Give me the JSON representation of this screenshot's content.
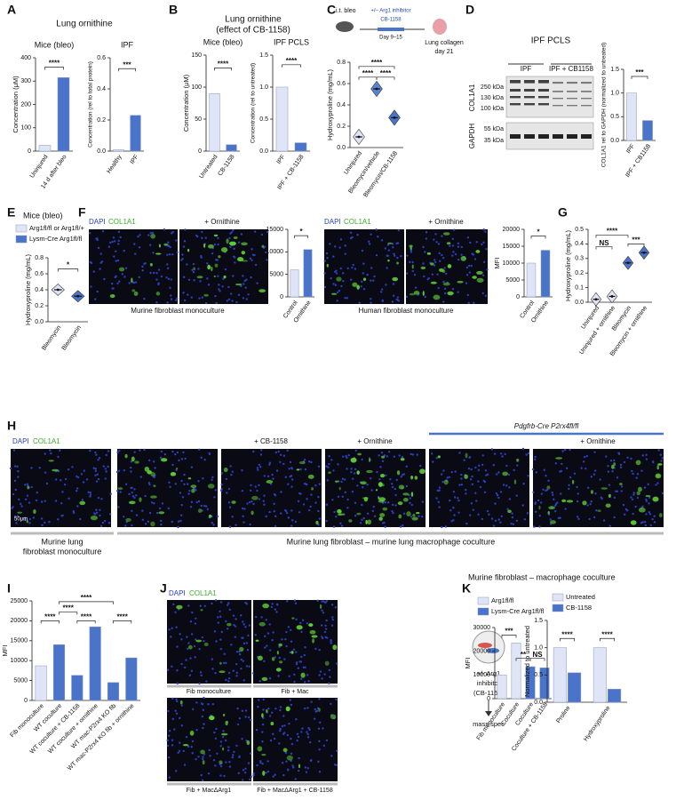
{
  "chart_data": [
    {
      "type": "bar",
      "title": "Mice (bleo)",
      "ylabel": "Concentration (μM)",
      "categories": [
        "Uninjured",
        "14 d after bleo"
      ],
      "values": [
        25,
        315
      ],
      "colors": [
        "#dfe5f7",
        "#4a74c9"
      ],
      "ylim": [
        0,
        400
      ],
      "yticks": [
        0,
        100,
        200,
        300,
        400
      ],
      "annotations": [
        "****"
      ]
    },
    {
      "type": "bar",
      "title": "IPF",
      "ylabel": "Concentration (rel to total protein)",
      "categories": [
        "Healthy",
        "IPF"
      ],
      "values": [
        0.01,
        0.23
      ],
      "colors": [
        "#dfe5f7",
        "#4a74c9"
      ],
      "ylim": [
        0,
        0.6
      ],
      "yticks": [
        {
          "value": 0,
          "label": "0.0"
        },
        0.2,
        0.4,
        0.6
      ],
      "annotations": [
        "***"
      ]
    },
    {
      "type": "bar",
      "title": "Mice (bleo)",
      "ylabel": "Concentration (μM)",
      "categories": [
        "Untreated",
        "CB-1158"
      ],
      "values": [
        90,
        10
      ],
      "colors": [
        "#dfe5f7",
        "#4a74c9"
      ],
      "ylim": [
        0,
        150
      ],
      "yticks": [
        0,
        50,
        100,
        150
      ],
      "annotations": [
        "****"
      ]
    },
    {
      "type": "bar",
      "title": "IPF PCLS",
      "ylabel": "Concentration (rel to untreated)",
      "categories": [
        "IPF",
        "IPF + CB-1158"
      ],
      "values": [
        1.0,
        0.13
      ],
      "colors": [
        "#dfe5f7",
        "#4a74c9"
      ],
      "ylim": [
        0,
        1.5
      ],
      "yticks": [
        {
          "value": 0,
          "label": "0.0"
        },
        0.5,
        {
          "value": 1,
          "label": "1.0"
        },
        1.5
      ],
      "annotations": [
        "****"
      ]
    },
    {
      "type": "violin",
      "ylabel": "Hydroxyproline (mg/mL)",
      "categories": [
        "Uninjured",
        "Bleomycin/vehicle",
        "Bleomycin/CB-1158"
      ],
      "values": [
        0.1,
        0.55,
        0.28
      ],
      "colors": [
        "#dfe5f7",
        "#5b82d2",
        "#4a74c9"
      ],
      "ylim": [
        0,
        0.8
      ],
      "yticks": [
        {
          "value": 0,
          "label": "0.0"
        },
        0.2,
        0.4,
        0.6,
        0.8
      ],
      "annotations": [
        "****",
        "****",
        "****"
      ]
    },
    {
      "type": "bar",
      "title": "IPF PCLS",
      "ylabel": "COL1A1 rel to GAPDH (normalized to untreated)",
      "categories": [
        "IPF",
        "IPF + CB1158"
      ],
      "values": [
        1.0,
        0.42
      ],
      "colors": [
        "#dfe5f7",
        "#4a74c9"
      ],
      "ylim": [
        0,
        1.5
      ],
      "yticks": [
        {
          "value": 0,
          "label": "0.0"
        },
        0.5,
        {
          "value": 1,
          "label": "1.0"
        },
        1.5
      ],
      "annotations": [
        "***"
      ]
    },
    {
      "type": "violin",
      "title": "Mice (bleo)",
      "ylabel": "Hydroxyproline (mg/mL)",
      "categories": [
        "Bleomycin",
        "Bleomycin"
      ],
      "series": [
        {
          "name": "Arg1fl/fl or Arg1fl/+",
          "color": "#dfe5f7",
          "values": [
            0.4,
            null
          ]
        },
        {
          "name": "Lysm-Cre Arg1fl/fl",
          "color": "#4a74c9",
          "values": [
            null,
            0.32
          ]
        }
      ],
      "ylim": [
        0,
        0.8
      ],
      "yticks": [
        {
          "value": 0,
          "label": "0.0"
        },
        0.2,
        0.4,
        0.6,
        0.8
      ],
      "annotations": [
        "*"
      ]
    },
    {
      "type": "bar",
      "ylabel": "MFI",
      "categories": [
        "Control",
        "Ornithine"
      ],
      "values": [
        6000,
        10500
      ],
      "colors": [
        "#dfe5f7",
        "#4a74c9"
      ],
      "ylim": [
        0,
        15000
      ],
      "yticks": [
        0,
        5000,
        10000,
        15000
      ],
      "annotations": [
        "*"
      ]
    },
    {
      "type": "bar",
      "ylabel": "MFI",
      "categories": [
        "Control",
        "Ornithine"
      ],
      "values": [
        10000,
        13800
      ],
      "colors": [
        "#dfe5f7",
        "#4a74c9"
      ],
      "ylim": [
        0,
        20000
      ],
      "yticks": [
        0,
        5000,
        10000,
        15000,
        20000
      ],
      "annotations": [
        "*"
      ]
    },
    {
      "type": "violin",
      "ylabel": "Hydroxyproline (mg/mL)",
      "categories": [
        "Uninjured",
        "Uninjured + ornithine",
        "Bleomycin",
        "Bleomycin + ornithine"
      ],
      "values": [
        0.02,
        0.04,
        0.27,
        0.34
      ],
      "colors": [
        "#dfe5f7",
        "#dfe5f7",
        "#4a74c9",
        "#4a74c9"
      ],
      "ylim": [
        0,
        0.5
      ],
      "yticks": [
        {
          "value": 0,
          "label": "0.0"
        },
        0.1,
        0.2,
        0.3,
        0.4,
        0.5
      ],
      "annotations": [
        "NS",
        "****",
        "***"
      ]
    },
    {
      "type": "bar",
      "ylabel": "MFI",
      "categories": [
        "Fib monoculture",
        "WT coculture",
        "WT coculture + CB-1158",
        "WT coculture + ornithine",
        "WT mac-P2rx4 KO fib",
        "WT mac-P2rx4 KO fib + ornithine"
      ],
      "values": [
        8700,
        14000,
        6300,
        18500,
        4500,
        10700
      ],
      "colors": [
        "#dfe5f7",
        "#4a74c9",
        "#4a74c9",
        "#4a74c9",
        "#4a74c9",
        "#4a74c9"
      ],
      "ylim": [
        0,
        25000
      ],
      "yticks": [
        0,
        5000,
        10000,
        15000,
        20000,
        25000
      ],
      "annotations": [
        "****",
        "****",
        "****",
        "****",
        "****"
      ]
    },
    {
      "type": "bar",
      "ylabel": "MFI",
      "categories": [
        "Fib monoculture",
        "Coculture",
        "Coculture",
        "Coculture + CB-1158"
      ],
      "series": [
        {
          "name": "Arg1fl/fl",
          "color": "#dfe5f7",
          "values": [
            10000,
            23500,
            null,
            null
          ]
        },
        {
          "name": "Lysm-Cre Arg1fl/fl",
          "color": "#4a74c9",
          "values": [
            null,
            null,
            13500,
            13000
          ]
        }
      ],
      "ylim": [
        0,
        30000
      ],
      "yticks": [
        0,
        10000,
        20000,
        30000
      ],
      "annotations": [
        "***",
        "**",
        "NS"
      ]
    },
    {
      "type": "bar",
      "title": "Murine fibroblast – macrophage coculture",
      "ylabel": "Normalized to untreated",
      "categories": [
        "Proline",
        "Hydroxyproline"
      ],
      "series": [
        {
          "name": "Untreated",
          "color": "#dfe5f7",
          "values": [
            1.0,
            1.0
          ]
        },
        {
          "name": "CB-1158",
          "color": "#4a74c9",
          "values": [
            0.54,
            0.24
          ]
        }
      ],
      "ylim": [
        0,
        1.5
      ],
      "yticks": [
        {
          "value": 0,
          "label": "0.0"
        },
        0.5,
        {
          "value": 1,
          "label": "1.0"
        },
        1.5
      ],
      "annotations": [
        "****",
        "****"
      ]
    }
  ],
  "panel_letters": [
    "A",
    "B",
    "C",
    "D",
    "E",
    "F",
    "G",
    "H",
    "I",
    "J",
    "K"
  ],
  "headers": [
    "Lung ornithine",
    "Lung ornithine",
    "(effect of CB-1158)"
  ],
  "schematic_c": [
    "i.t. bleo",
    "+/– Arg1 inhibitor",
    "CB-1158",
    "Day 9–15",
    "Lung collagen",
    "day 21"
  ],
  "blot_d": {
    "lanes": [
      "IPF",
      "IPF + CB1158"
    ],
    "proteins": [
      "COL1A1",
      "GAPDH"
    ],
    "markers": [
      "250 kDa",
      "130 kDa",
      "100 kDa",
      "55 kDa",
      "35 kDa"
    ]
  },
  "image_labels_f": [
    "DAPI",
    "COL1A1",
    "+ Ornithine",
    "Murine fibroblast monoculture",
    "DAPI",
    "COL1A1",
    "+ Ornithine",
    "Human fibroblast monoculture"
  ],
  "image_labels_h": [
    "DAPI",
    "COL1A1",
    "+ CB-1158",
    "+ Ornithine",
    "Pdgfrb-Cre P2rx4fl/fl",
    "+ Ornithine",
    "50μm"
  ],
  "captions_h": [
    "Murine lung",
    "fibroblast monoculture",
    "Murine lung fibroblast – murine lung macrophage coculture"
  ],
  "image_labels_j": [
    "DAPI",
    "COL1A1",
    "Fib monoculture",
    "Fib + Mac",
    "Fib + MacΔArg1",
    "Fib + MacΔArg1 + CB-1158"
  ],
  "schematic_k": [
    "+/- Arg1",
    "inhibitor",
    "(CB-1158)",
    "mass spec"
  ]
}
